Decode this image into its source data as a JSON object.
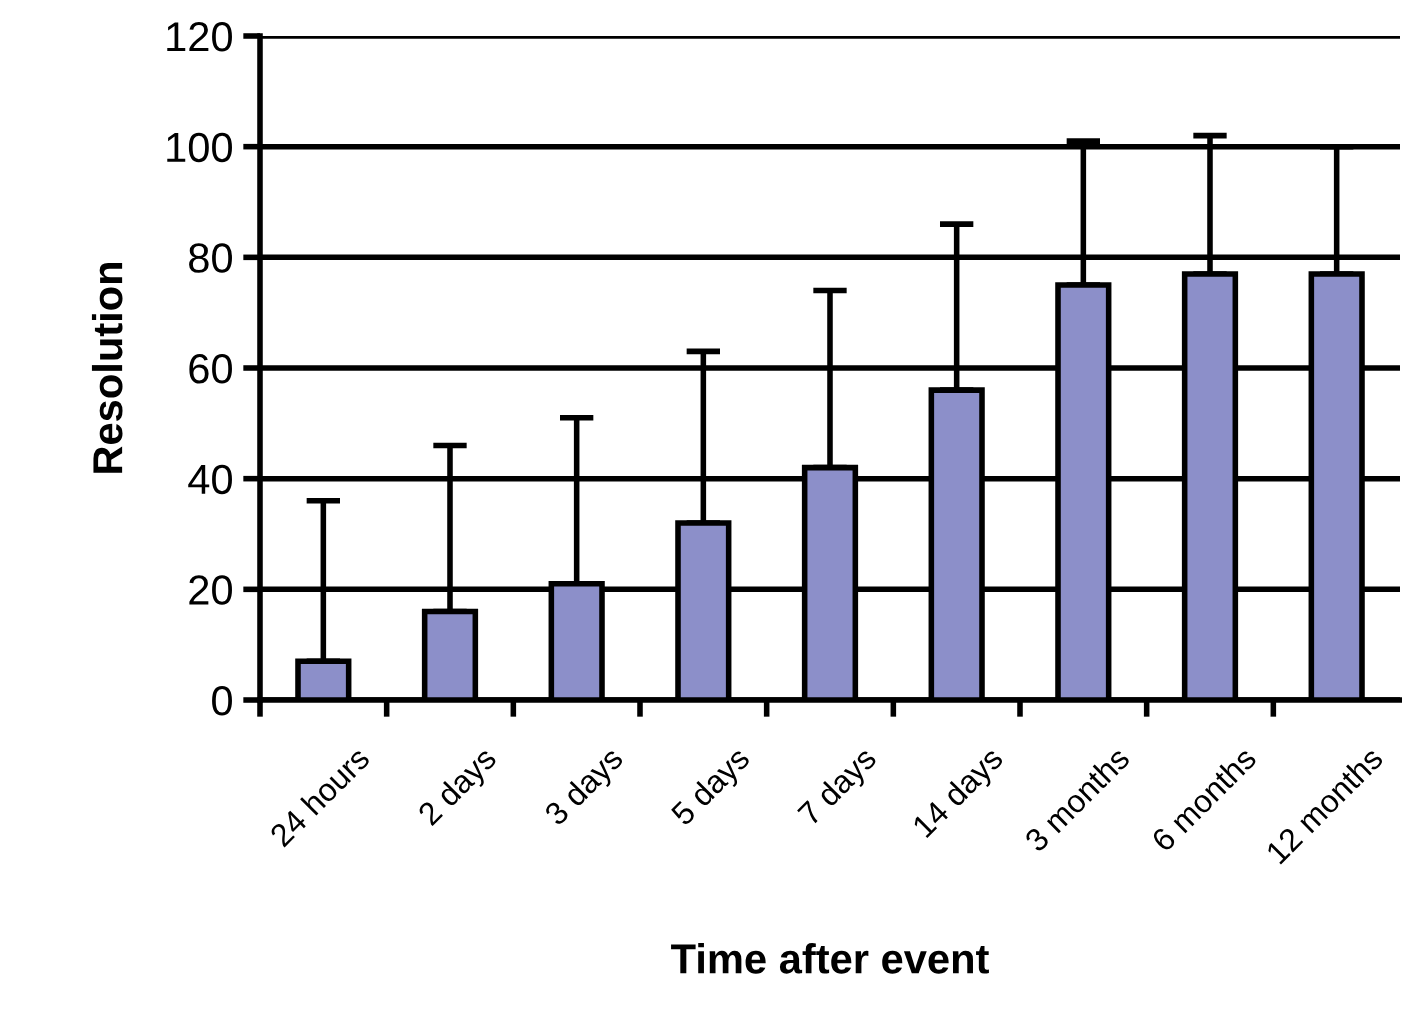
{
  "chart_data": {
    "type": "bar",
    "xlabel": "Time after event",
    "ylabel": "Resolution",
    "categories": [
      "24 hours",
      "2 days",
      "3 days",
      "5 days",
      "7 days",
      "14 days",
      "3 months",
      "6 months",
      "12 months"
    ],
    "values": [
      7,
      16,
      21,
      32,
      42,
      56,
      75,
      77,
      77
    ],
    "errors": [
      [
        7,
        36
      ],
      [
        16,
        46
      ],
      [
        21,
        51
      ],
      [
        32,
        63
      ],
      [
        42,
        74
      ],
      [
        56,
        86
      ],
      [
        75,
        101
      ],
      [
        77,
        102
      ],
      [
        77,
        100
      ]
    ],
    "color": "#8c8fc9",
    "ylim": [
      0,
      120
    ],
    "yticks": [
      0,
      20,
      40,
      60,
      80,
      100,
      120
    ],
    "grid": "y",
    "legend": false
  }
}
